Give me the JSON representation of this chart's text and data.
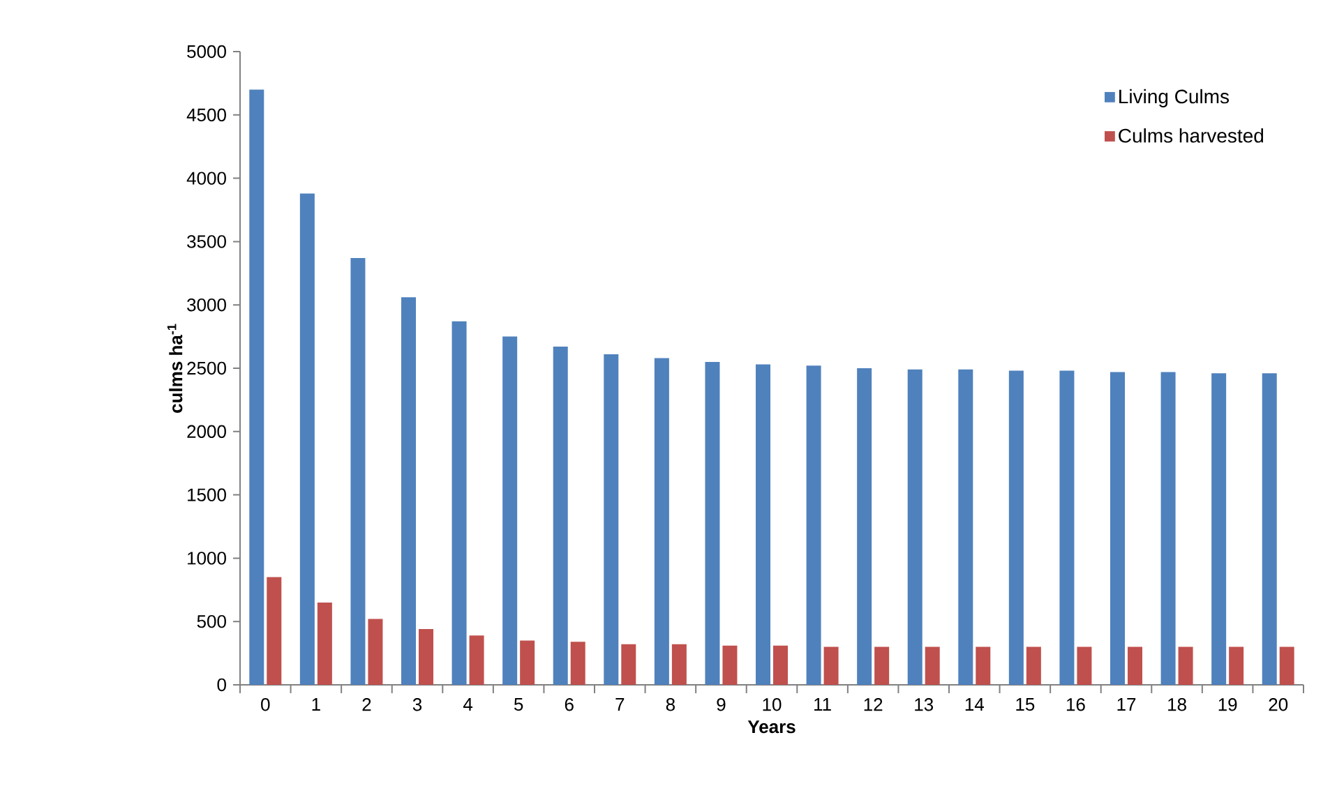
{
  "chart_data": {
    "type": "bar",
    "xlabel": "Years",
    "ylabel": "culms ha$^{-1}$",
    "categories": [
      "0",
      "1",
      "2",
      "3",
      "4",
      "5",
      "6",
      "7",
      "8",
      "9",
      "10",
      "11",
      "12",
      "13",
      "14",
      "15",
      "16",
      "17",
      "18",
      "19",
      "20"
    ],
    "series": [
      {
        "name": "Living Culms",
        "color": "#4f81bd",
        "values": [
          4700,
          3880,
          3370,
          3060,
          2870,
          2750,
          2670,
          2610,
          2580,
          2550,
          2530,
          2520,
          2500,
          2490,
          2490,
          2480,
          2480,
          2470,
          2470,
          2460,
          2460
        ]
      },
      {
        "name": "Culms harvested",
        "color": "#c0504d",
        "values": [
          850,
          650,
          520,
          440,
          390,
          350,
          340,
          320,
          320,
          310,
          310,
          300,
          300,
          300,
          300,
          300,
          300,
          300,
          300,
          300,
          300
        ]
      }
    ],
    "ylim": [
      0,
      5000
    ],
    "yticks": [
      0,
      500,
      1000,
      1500,
      2000,
      2500,
      3000,
      3500,
      4000,
      4500,
      5000
    ],
    "grid": false,
    "legend": "top right"
  }
}
